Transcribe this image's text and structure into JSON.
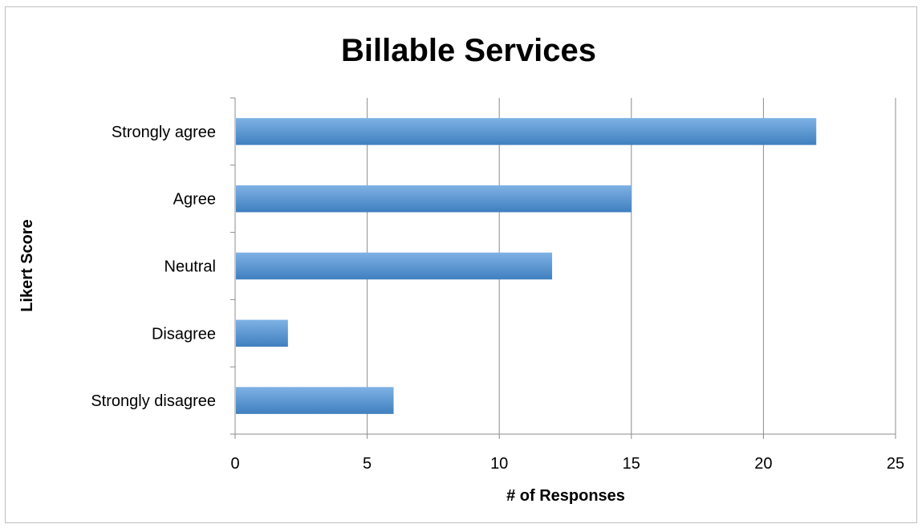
{
  "chart_data": {
    "type": "bar",
    "orientation": "horizontal",
    "title": "Billable Services",
    "xlabel": "# of Responses",
    "ylabel": "Likert Score",
    "categories": [
      "Strongly agree",
      "Agree",
      "Neutral",
      "Disagree",
      "Strongly disagree"
    ],
    "values": [
      22,
      15,
      12,
      2,
      6
    ],
    "xlim": [
      0,
      25
    ],
    "xticks": [
      "0",
      "5",
      "10",
      "15",
      "20",
      "25"
    ],
    "grid": "vertical",
    "legend": "none",
    "bar_color": "#5b9bd5",
    "bar_color_light": "#7fb2e5",
    "bar_color_dark": "#3f7fbf"
  }
}
